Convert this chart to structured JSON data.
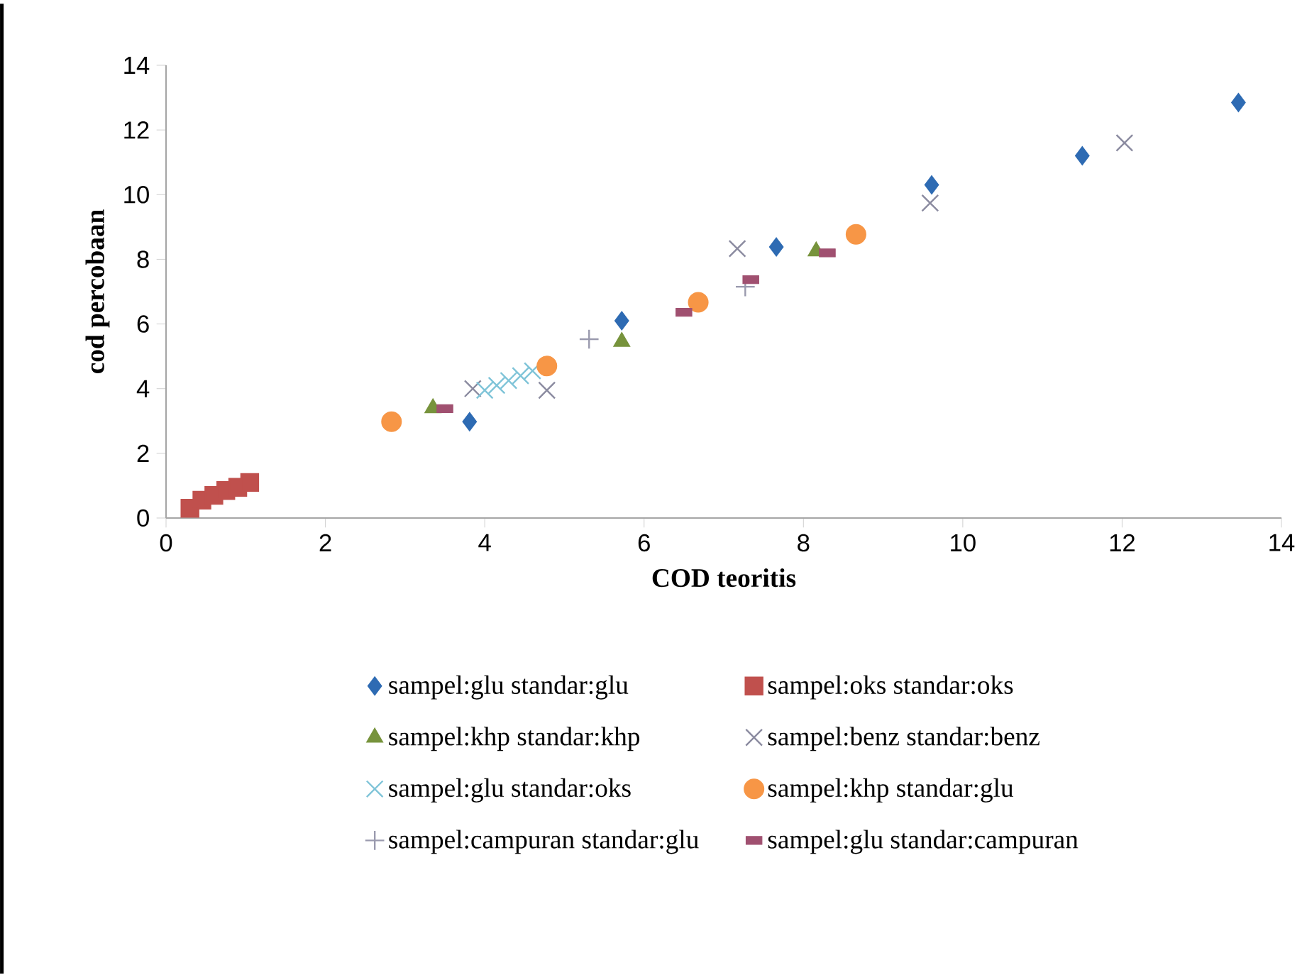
{
  "chart_data": {
    "type": "scatter",
    "xlabel": "COD teoritis",
    "ylabel": "cod percobaan",
    "xlim": [
      0,
      14
    ],
    "ylim": [
      0,
      14
    ],
    "xticks": [
      0,
      2,
      4,
      6,
      8,
      10,
      12,
      14
    ],
    "yticks": [
      0,
      2,
      4,
      6,
      8,
      10,
      12,
      14
    ],
    "legend": "bottom",
    "series": [
      {
        "name": "sampel:glu standar:glu",
        "color": "#2e6bb3",
        "marker": "diamond",
        "x": [
          3.81,
          5.72,
          7.66,
          9.61,
          11.5,
          13.46
        ],
        "values": [
          2.98,
          6.1,
          8.38,
          10.3,
          11.2,
          12.85
        ]
      },
      {
        "name": "sampel:oks standar:oks",
        "color": "#c0504d",
        "marker": "square",
        "x": [
          0.3,
          0.45,
          0.6,
          0.75,
          0.9,
          1.05
        ],
        "values": [
          0.3,
          0.55,
          0.7,
          0.85,
          0.95,
          1.1
        ]
      },
      {
        "name": "sampel:khp standar:khp",
        "color": "#77933c",
        "marker": "triangle",
        "x": [
          3.35,
          5.72,
          8.16
        ],
        "values": [
          3.4,
          5.45,
          8.25
        ]
      },
      {
        "name": "sampel:benz standar:benz",
        "color": "#8b8ba0",
        "marker": "cross",
        "x": [
          3.85,
          4.78,
          7.17,
          9.59,
          12.03
        ],
        "values": [
          4.0,
          3.95,
          8.33,
          9.74,
          11.6
        ]
      },
      {
        "name": "sampel:glu standar:oks",
        "color": "#7fc4d8",
        "marker": "cross",
        "x": [
          4.0,
          4.15,
          4.3,
          4.45,
          4.6
        ],
        "values": [
          3.95,
          4.1,
          4.25,
          4.4,
          4.55
        ]
      },
      {
        "name": "sampel:khp standar:glu",
        "color": "#f79646",
        "marker": "circle",
        "x": [
          2.83,
          4.78,
          6.68,
          8.66
        ],
        "values": [
          2.98,
          4.7,
          6.67,
          8.77
        ]
      },
      {
        "name": "sampel:campuran standar:glu",
        "color": "#9a9aae",
        "marker": "plus",
        "x": [
          5.31,
          7.27
        ],
        "values": [
          5.53,
          7.15
        ]
      },
      {
        "name": "sampel:glu standar:campuran",
        "color": "#a05070",
        "x": [
          3.5,
          6.5,
          7.34,
          8.3
        ],
        "values": [
          3.38,
          6.36,
          7.37,
          8.2
        ]
      }
    ]
  }
}
